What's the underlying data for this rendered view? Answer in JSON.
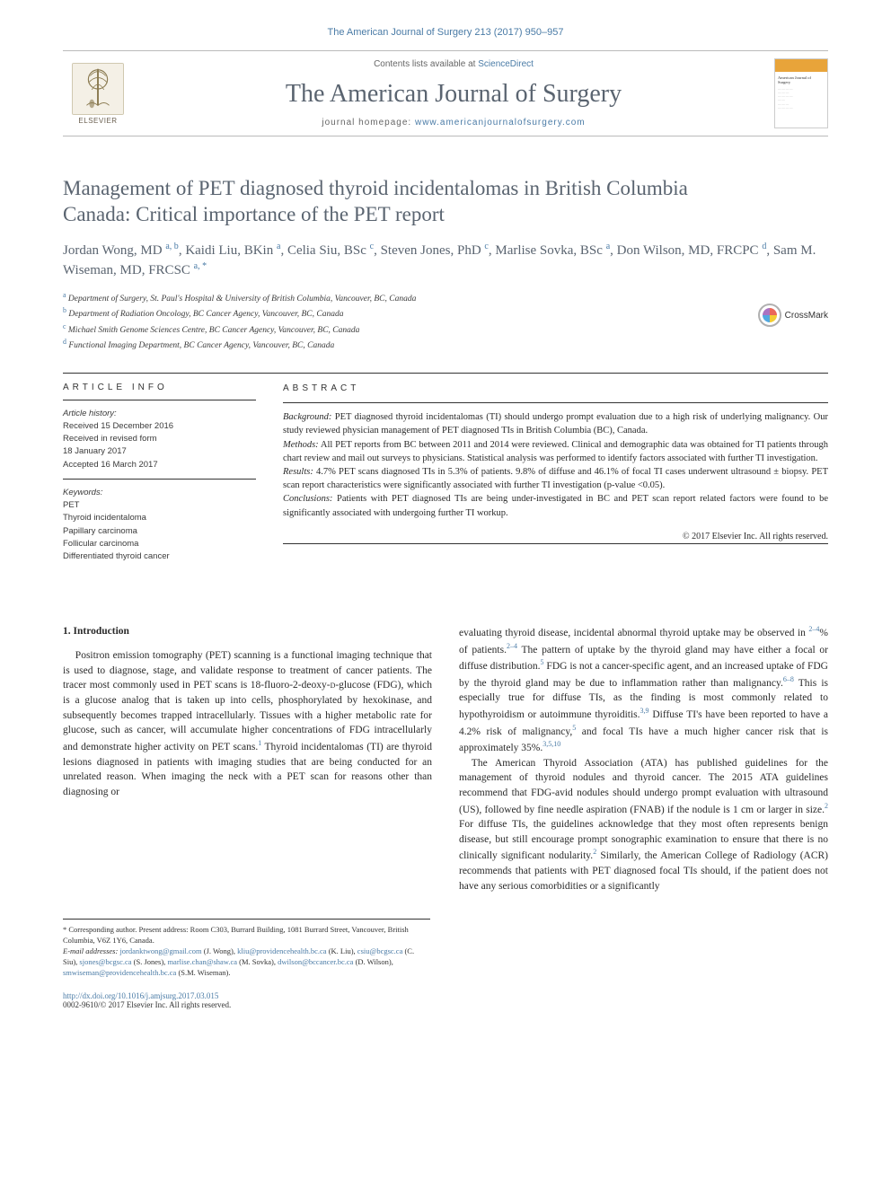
{
  "header": {
    "citation": "The American Journal of Surgery 213 (2017) 950–957",
    "contents_prefix": "Contents lists available at ",
    "contents_link": "ScienceDirect",
    "journal_title": "The American Journal of Surgery",
    "homepage_prefix": "journal homepage: ",
    "homepage_url": "www.americanjournalofsurgery.com",
    "elsevier_label": "ELSEVIER",
    "crossmark_label": "CrossMark"
  },
  "article": {
    "title": "Management of PET diagnosed thyroid incidentalomas in British Columbia Canada: Critical importance of the PET report",
    "authors_html": "Jordan Wong, MD <sup>a, b</sup>, Kaidi Liu, BKin <sup>a</sup>, Celia Siu, BSc <sup>c</sup>, Steven Jones, PhD <sup>c</sup>, Marlise Sovka, BSc <sup>a</sup>, Don Wilson, MD, FRCPC <sup>d</sup>, Sam M. Wiseman, MD, FRCSC <sup>a, <span class='star'>*</span></sup>",
    "affiliations": [
      {
        "sup": "a",
        "text": "Department of Surgery, St. Paul's Hospital & University of British Columbia, Vancouver, BC, Canada"
      },
      {
        "sup": "b",
        "text": "Department of Radiation Oncology, BC Cancer Agency, Vancouver, BC, Canada"
      },
      {
        "sup": "c",
        "text": "Michael Smith Genome Sciences Centre, BC Cancer Agency, Vancouver, BC, Canada"
      },
      {
        "sup": "d",
        "text": "Functional Imaging Department, BC Cancer Agency, Vancouver, BC, Canada"
      }
    ]
  },
  "article_info": {
    "heading": "ARTICLE INFO",
    "history_label": "Article history:",
    "received": "Received 15 December 2016",
    "revised": "Received in revised form",
    "revised_date": "18 January 2017",
    "accepted": "Accepted 16 March 2017",
    "keywords_label": "Keywords:",
    "keywords": [
      "PET",
      "Thyroid incidentaloma",
      "Papillary carcinoma",
      "Follicular carcinoma",
      "Differentiated thyroid cancer"
    ]
  },
  "abstract": {
    "heading": "ABSTRACT",
    "segments": [
      {
        "label": "Background:",
        "text": " PET diagnosed thyroid incidentalomas (TI) should undergo prompt evaluation due to a high risk of underlying malignancy. Our study reviewed physician management of PET diagnosed TIs in British Columbia (BC), Canada."
      },
      {
        "label": "Methods:",
        "text": " All PET reports from BC between 2011 and 2014 were reviewed. Clinical and demographic data was obtained for TI patients through chart review and mail out surveys to physicians. Statistical analysis was performed to identify factors associated with further TI investigation."
      },
      {
        "label": "Results:",
        "text": " 4.7% PET scans diagnosed TIs in 5.3% of patients. 9.8% of diffuse and 46.1% of focal TI cases underwent ultrasound ± biopsy. PET scan report characteristics were significantly associated with further TI investigation (p-value <0.05)."
      },
      {
        "label": "Conclusions:",
        "text": " Patients with PET diagnosed TIs are being under-investigated in BC and PET scan report related factors were found to be significantly associated with undergoing further TI workup."
      }
    ],
    "copyright": "© 2017 Elsevier Inc. All rights reserved."
  },
  "body": {
    "section_heading": "1. Introduction",
    "col1_p1": "Positron emission tomography (PET) scanning is a functional imaging technique that is used to diagnose, stage, and validate response to treatment of cancer patients. The tracer most commonly used in PET scans is 18-fluoro-2-deoxy-D-glucose (FDG), which is a glucose analog that is taken up into cells, phosphorylated by hexokinase, and subsequently becomes trapped intracellularly. Tissues with a higher metabolic rate for glucose, such as cancer, will accumulate higher concentrations of FDG intracellularly and demonstrate higher activity on PET scans.1 Thyroid incidentalomas (TI) are thyroid lesions diagnosed in patients with imaging studies that are being conducted for an unrelated reason. When imaging the neck with a PET scan for reasons other than diagnosing or",
    "col2_p1": "evaluating thyroid disease, incidental abnormal thyroid uptake may be observed in 2–4% of patients.2–4 The pattern of uptake by the thyroid gland may have either a focal or diffuse distribution.5 FDG is not a cancer-specific agent, and an increased uptake of FDG by the thyroid gland may be due to inflammation rather than malignancy.6–8 This is especially true for diffuse TIs, as the finding is most commonly related to hypothyroidism or autoimmune thyroiditis.3,9 Diffuse TI's have been reported to have a 4.2% risk of malignancy,5 and focal TIs have a much higher cancer risk that is approximately 35%.3,5,10",
    "col2_p2": "The American Thyroid Association (ATA) has published guidelines for the management of thyroid nodules and thyroid cancer. The 2015 ATA guidelines recommend that FDG-avid nodules should undergo prompt evaluation with ultrasound (US), followed by fine needle aspiration (FNAB) if the nodule is 1 cm or larger in size.2 For diffuse TIs, the guidelines acknowledge that they most often represents benign disease, but still encourage prompt sonographic examination to ensure that there is no clinically significant nodularity.2 Similarly, the American College of Radiology (ACR) recommends that patients with PET diagnosed focal TIs should, if the patient does not have any serious comorbidities or a significantly"
  },
  "footnotes": {
    "corresponding": "* Corresponding author. Present address: Room C303, Burrard Building, 1081 Burrard Street, Vancouver, British Columbia, V6Z 1Y6, Canada.",
    "emails_label": "E-mail addresses:",
    "emails_text": " jordanktwong@gmail.com (J. Wong), kliu@providencehealth.bc.ca (K. Liu), csiu@bcgsc.ca (C. Siu), sjones@bcgsc.ca (S. Jones), marlise.chan@shaw.ca (M. Sovka), dwilson@bccancer.bc.ca (D. Wilson), smwiseman@providencehealth.bc.ca (S.M. Wiseman)."
  },
  "doi": {
    "url": "http://dx.doi.org/10.1016/j.amjsurg.2017.03.015",
    "issn_line": "0002-9610/© 2017 Elsevier Inc. All rights reserved."
  },
  "colors": {
    "link": "#4a7ba6",
    "heading_gray": "#5a6470",
    "text": "#2a2a2a",
    "rule": "#333333"
  }
}
